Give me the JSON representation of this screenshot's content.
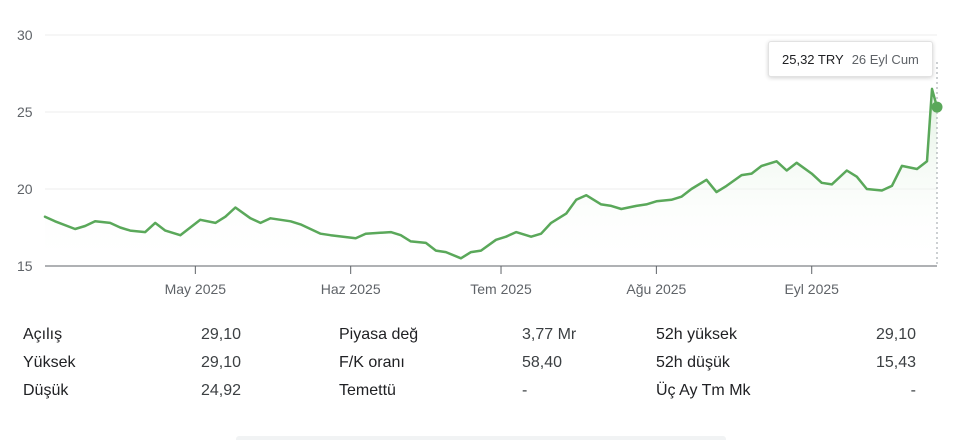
{
  "tooltip": {
    "price": "25,32 TRY",
    "date": "26 Eyl Cum"
  },
  "colors": {
    "line": "#5aa85a",
    "area_top": "#e3f1e3",
    "grid": "#ececec",
    "axis_text": "#5f6368"
  },
  "chart_data": {
    "type": "line",
    "x": [
      "2025-04-01",
      "2025-04-03",
      "2025-04-07",
      "2025-04-09",
      "2025-04-11",
      "2025-04-14",
      "2025-04-16",
      "2025-04-18",
      "2025-04-21",
      "2025-04-23",
      "2025-04-25",
      "2025-04-28",
      "2025-04-30",
      "2025-05-02",
      "2025-05-05",
      "2025-05-07",
      "2025-05-09",
      "2025-05-12",
      "2025-05-14",
      "2025-05-16",
      "2025-05-20",
      "2025-05-22",
      "2025-05-26",
      "2025-05-28",
      "2025-06-02",
      "2025-06-04",
      "2025-06-09",
      "2025-06-11",
      "2025-06-13",
      "2025-06-16",
      "2025-06-18",
      "2025-06-20",
      "2025-06-23",
      "2025-06-25",
      "2025-06-27",
      "2025-06-30",
      "2025-07-02",
      "2025-07-04",
      "2025-07-07",
      "2025-07-09",
      "2025-07-11",
      "2025-07-14",
      "2025-07-16",
      "2025-07-18",
      "2025-07-21",
      "2025-07-23",
      "2025-07-25",
      "2025-07-28",
      "2025-07-30",
      "2025-08-01",
      "2025-08-04",
      "2025-08-06",
      "2025-08-08",
      "2025-08-11",
      "2025-08-13",
      "2025-08-15",
      "2025-08-18",
      "2025-08-20",
      "2025-08-22",
      "2025-08-25",
      "2025-08-27",
      "2025-08-29",
      "2025-09-01",
      "2025-09-03",
      "2025-09-05",
      "2025-09-08",
      "2025-09-10",
      "2025-09-12",
      "2025-09-15",
      "2025-09-17",
      "2025-09-19",
      "2025-09-22",
      "2025-09-24",
      "2025-09-25",
      "2025-09-26"
    ],
    "series": [
      {
        "values": [
          18.2,
          17.9,
          17.4,
          17.6,
          17.9,
          17.8,
          17.5,
          17.3,
          17.2,
          17.8,
          17.3,
          17.0,
          17.5,
          18.0,
          17.8,
          18.2,
          18.8,
          18.1,
          17.8,
          18.1,
          17.9,
          17.7,
          17.1,
          17.0,
          16.8,
          17.1,
          17.2,
          17.0,
          16.6,
          16.5,
          16.0,
          15.9,
          15.5,
          15.9,
          16.0,
          16.7,
          16.9,
          17.2,
          16.9,
          17.1,
          17.8,
          18.4,
          19.3,
          19.6,
          19.0,
          18.9,
          18.7,
          18.9,
          19.0,
          19.2,
          19.3,
          19.5,
          20.0,
          20.6,
          19.8,
          20.2,
          20.9,
          21.0,
          21.5,
          21.8,
          21.2,
          21.7,
          21.0,
          20.4,
          20.3,
          21.2,
          20.8,
          20.0,
          19.9,
          20.2,
          21.5,
          21.3,
          21.8,
          26.5,
          25.32
        ]
      }
    ],
    "ylim": [
      15,
      30
    ],
    "yticks": [
      "15",
      "20",
      "25",
      "30"
    ],
    "xtick_dates": [
      "2025-05-01",
      "2025-06-01",
      "2025-07-01",
      "2025-08-01",
      "2025-09-01"
    ],
    "xtick_labels": [
      "May 2025",
      "Haz 2025",
      "Tem 2025",
      "Ağu 2025",
      "Eyl 2025"
    ],
    "x_range": [
      "2025-04-01",
      "2025-09-26"
    ]
  },
  "stats": {
    "rows": [
      [
        {
          "label": "Açılış",
          "value": "29,10"
        },
        {
          "label": "Piyasa değ",
          "value": "3,77 Mr"
        },
        {
          "label": "52h yüksek",
          "value": "29,10"
        }
      ],
      [
        {
          "label": "Yüksek",
          "value": "29,10"
        },
        {
          "label": "F/K oranı",
          "value": "58,40"
        },
        {
          "label": "52h düşük",
          "value": "15,43"
        }
      ],
      [
        {
          "label": "Düşük",
          "value": "24,92"
        },
        {
          "label": "Temettü",
          "value": "-"
        },
        {
          "label": "Üç Ay Tm Mk",
          "value": "-"
        }
      ]
    ]
  }
}
